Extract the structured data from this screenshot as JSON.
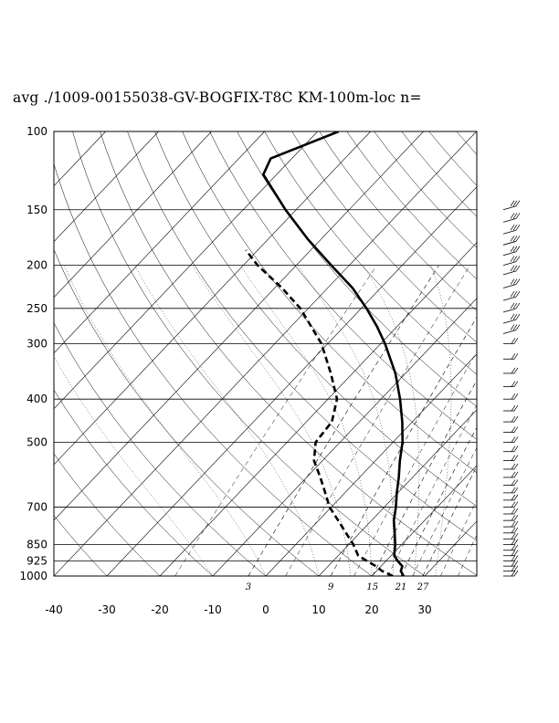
{
  "title": "avg ./1009-00155038-GV-BOGFIX-T8C KM-100m-loc n=",
  "chart_data": {
    "type": "skew-t log-p",
    "title": "avg ./1009-00155038-GV-BOGFIX-T8C KM-100m-loc n=",
    "pressure_levels": [
      100,
      150,
      200,
      250,
      300,
      400,
      500,
      700,
      850,
      925,
      1000
    ],
    "pressure_labels": [
      "100",
      "150",
      "200",
      "250",
      "300",
      "400",
      "500",
      "700",
      "850",
      "925",
      "1000"
    ],
    "temperature_ticks": [
      -40,
      -30,
      -20,
      -10,
      0,
      10,
      20,
      30
    ],
    "temperature_labels": [
      "-40",
      "-30",
      "-20",
      "-10",
      "0",
      "10",
      "20",
      "30"
    ],
    "mixing_ratio_labels": [
      "3",
      "9",
      "15",
      "21",
      "27"
    ],
    "series": [
      {
        "style": "solid",
        "points": [
          [
            1000,
            26.0
          ],
          [
            975,
            24.6
          ],
          [
            950,
            24.0
          ],
          [
            925,
            22.2
          ],
          [
            900,
            20.6
          ],
          [
            850,
            18.8
          ],
          [
            800,
            16.6
          ],
          [
            750,
            14.2
          ],
          [
            700,
            12.2
          ],
          [
            650,
            9.8
          ],
          [
            600,
            7.4
          ],
          [
            550,
            4.6
          ],
          [
            500,
            1.8
          ],
          [
            450,
            -1.9
          ],
          [
            400,
            -6.4
          ],
          [
            350,
            -11.9
          ],
          [
            300,
            -19.2
          ],
          [
            275,
            -23.7
          ],
          [
            250,
            -29.0
          ],
          [
            225,
            -35.3
          ],
          [
            200,
            -43.4
          ],
          [
            175,
            -52.4
          ],
          [
            150,
            -62.0
          ],
          [
            125,
            -72.5
          ],
          [
            115,
            -74.0
          ],
          [
            100,
            -66.0
          ]
        ]
      },
      {
        "style": "dashed",
        "points": [
          [
            1000,
            24.0
          ],
          [
            975,
            21.1
          ],
          [
            950,
            19.0
          ],
          [
            925,
            16.4
          ],
          [
            900,
            13.8
          ],
          [
            850,
            10.9
          ],
          [
            800,
            7.4
          ],
          [
            750,
            3.7
          ],
          [
            700,
            -0.3
          ],
          [
            650,
            -3.7
          ],
          [
            600,
            -7.4
          ],
          [
            550,
            -11.6
          ],
          [
            500,
            -14.6
          ],
          [
            450,
            -15.2
          ],
          [
            400,
            -18.3
          ],
          [
            350,
            -24.1
          ],
          [
            300,
            -31.2
          ],
          [
            250,
            -41.5
          ],
          [
            225,
            -48.6
          ],
          [
            200,
            -57.3
          ],
          [
            185,
            -62.2
          ]
        ]
      }
    ],
    "wind_barbs": {
      "note": "wind profile on right side",
      "levels": [
        1000,
        975,
        950,
        925,
        900,
        875,
        850,
        825,
        800,
        775,
        750,
        725,
        700,
        675,
        650,
        625,
        600,
        575,
        550,
        525,
        500,
        475,
        450,
        425,
        400,
        375,
        350,
        325,
        300,
        285,
        270,
        255,
        240,
        225,
        210,
        200,
        190,
        180,
        170,
        160,
        150
      ]
    },
    "xlim": [
      -40,
      40
    ],
    "ylim": [
      1000,
      100
    ],
    "grid": true
  }
}
